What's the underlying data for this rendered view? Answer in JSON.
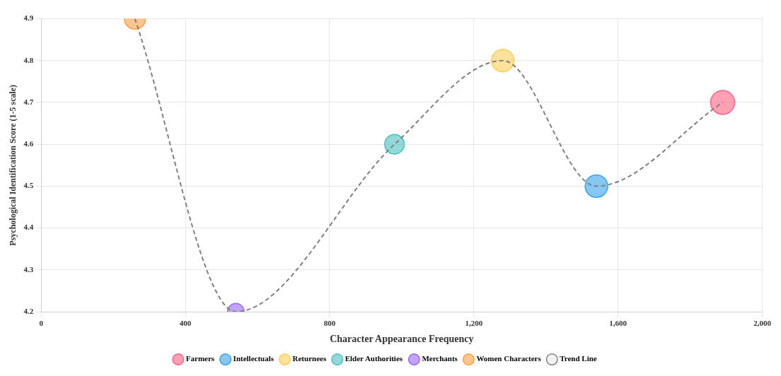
{
  "chart_data": {
    "type": "bubble",
    "xlabel": "Character Appearance Frequency",
    "ylabel": "Psychological Identification Score (1-5 scale)",
    "xlim": [
      0,
      2000
    ],
    "xticks": [
      0,
      {
        "value": 400,
        "label": "400"
      },
      {
        "value": 800,
        "label": "800"
      },
      {
        "value": 1200,
        "label": "1,200"
      },
      {
        "value": 1600,
        "label": "1,600"
      },
      {
        "value": 2000,
        "label": "2,000"
      }
    ],
    "ylim": [
      4.2,
      4.9
    ],
    "yticks": [
      4.2,
      4.3,
      4.4,
      4.5,
      4.6,
      4.7,
      4.8,
      4.9
    ],
    "grid": true,
    "legend": "bottom",
    "series": [
      {
        "name": "Farmers",
        "color": "#ff6384",
        "x": [
          1890
        ],
        "values": [
          4.7
        ],
        "sizes": [
          1
        ]
      },
      {
        "name": "Intellectuals",
        "color": "#36a2eb",
        "x": [
          1540
        ],
        "values": [
          4.5
        ],
        "sizes": [
          0.88
        ]
      },
      {
        "name": "Returnees",
        "color": "#ffce56",
        "x": [
          1280
        ],
        "values": [
          4.8
        ],
        "sizes": [
          0.88
        ]
      },
      {
        "name": "Elder Authorities",
        "color": "#4bc0c0",
        "x": [
          980
        ],
        "values": [
          4.6
        ],
        "sizes": [
          0.66
        ]
      },
      {
        "name": "Merchants",
        "color": "#9966ff",
        "x": [
          540
        ],
        "values": [
          4.2
        ],
        "sizes": [
          0.47
        ]
      },
      {
        "name": "Women Characters",
        "color": "#ff9f40",
        "x": [
          260
        ],
        "values": [
          4.9
        ],
        "sizes": [
          0.77
        ]
      },
      {
        "name": "Trend Line",
        "type": "line",
        "color": "#808080",
        "line_style": "dashed",
        "marker": "none",
        "x": [
          260,
          540,
          980,
          1280,
          1540,
          1890
        ],
        "values": [
          4.9,
          4.2,
          4.6,
          4.8,
          4.5,
          4.7
        ]
      }
    ]
  }
}
